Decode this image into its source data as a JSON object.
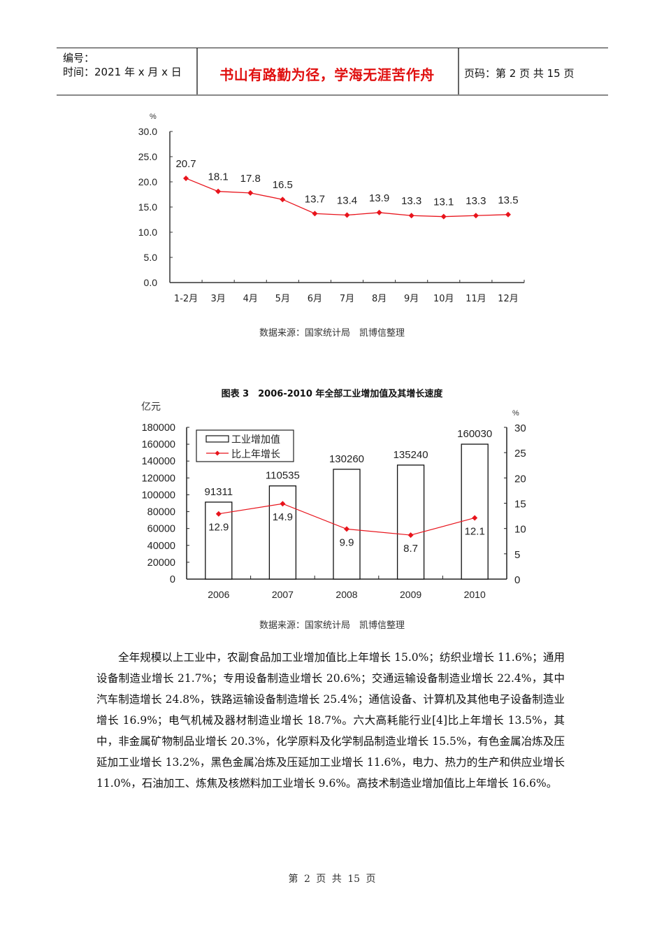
{
  "header": {
    "number_label": "编号：",
    "time_label": "时间：2021 年 x 月 x 日",
    "motto": "书山有路勤为径，学海无涯苦作舟",
    "page_info": "页码：第 2 页  共 15 页"
  },
  "chart1": {
    "unit": "%",
    "source": "数据来源：国家统计局　凯博信整理"
  },
  "chart2": {
    "title": "图表 3　2006-2010 年全部工业增加值及其增长速度",
    "left_unit": "亿元",
    "right_unit": "%",
    "legend": [
      "工业增加值",
      "比上年增长"
    ],
    "source": "数据来源：国家统计局　凯博信整理"
  },
  "chart_data": [
    {
      "type": "line",
      "title": "",
      "xlabel": "",
      "ylabel": "%",
      "categories": [
        "1-2月",
        "3月",
        "4月",
        "5月",
        "6月",
        "7月",
        "8月",
        "9月",
        "10月",
        "11月",
        "12月"
      ],
      "values": [
        20.7,
        18.1,
        17.8,
        16.5,
        13.7,
        13.4,
        13.9,
        13.3,
        13.1,
        13.3,
        13.5
      ],
      "labels": [
        "20.7",
        "18.1",
        "17.8",
        "16.5",
        "13.7",
        "13.4",
        "13.9",
        "13.3",
        "13.1",
        "13.3",
        "13.5"
      ],
      "yticks": [
        "0.0",
        "5.0",
        "10.0",
        "15.0",
        "20.0",
        "25.0",
        "30.0"
      ],
      "ylim": [
        0,
        30
      ],
      "grid": false,
      "line_color": "#e8141c"
    },
    {
      "type": "bar",
      "title": "图表 3　2006-2010 年全部工业增加值及其增长速度",
      "categories": [
        "2006",
        "2007",
        "2008",
        "2009",
        "2010"
      ],
      "series": [
        {
          "name": "工业增加值",
          "type": "bar",
          "axis": "left",
          "values": [
            91311,
            110535,
            130260,
            135240,
            160030
          ],
          "labels": [
            "91311",
            "110535",
            "130260",
            "135240",
            "160030"
          ]
        },
        {
          "name": "比上年增长",
          "type": "line",
          "axis": "right",
          "values": [
            12.9,
            14.9,
            9.9,
            8.7,
            12.1
          ],
          "labels": [
            "12.9",
            "14.9",
            "9.9",
            "8.7",
            "12.1"
          ],
          "color": "#e8141c"
        }
      ],
      "ylabel": "亿元",
      "ylabel_right": "%",
      "ylim": [
        0,
        180000
      ],
      "ylim_right": [
        0,
        30
      ],
      "yticks": [
        "0",
        "20000",
        "40000",
        "60000",
        "80000",
        "100000",
        "120000",
        "140000",
        "160000",
        "180000"
      ],
      "yticks_right": [
        "0",
        "5",
        "10",
        "15",
        "20",
        "25",
        "30"
      ],
      "legend_position": "top-left",
      "grid": false
    }
  ],
  "body": {
    "paragraph": "全年规模以上工业中，农副食品加工业增加值比上年增长 15.0%；纺织业增长 11.6%；通用设备制造业增长 21.7%；专用设备制造业增长 20.6%；交通运输设备制造业增长 22.4%，其中汽车制造增长 24.8%，铁路运输设备制造增长 25.4%；通信设备、计算机及其他电子设备制造业增长 16.9%；电气机械及器材制造业增长 18.7%。六大高耗能行业[4]比上年增长 13.5%，其中，非金属矿物制品业增长 20.3%，化学原料及化学制品制造业增长 15.5%，有色金属冶炼及压延加工业增长 13.2%，黑色金属冶炼及压延加工业增长 11.6%，电力、热力的生产和供应业增长 11.0%，石油加工、炼焦及核燃料加工业增长 9.6%。高技术制造业增加值比上年增长 16.6%。"
  },
  "footer": {
    "page_text": "第 2 页 共 15 页"
  }
}
